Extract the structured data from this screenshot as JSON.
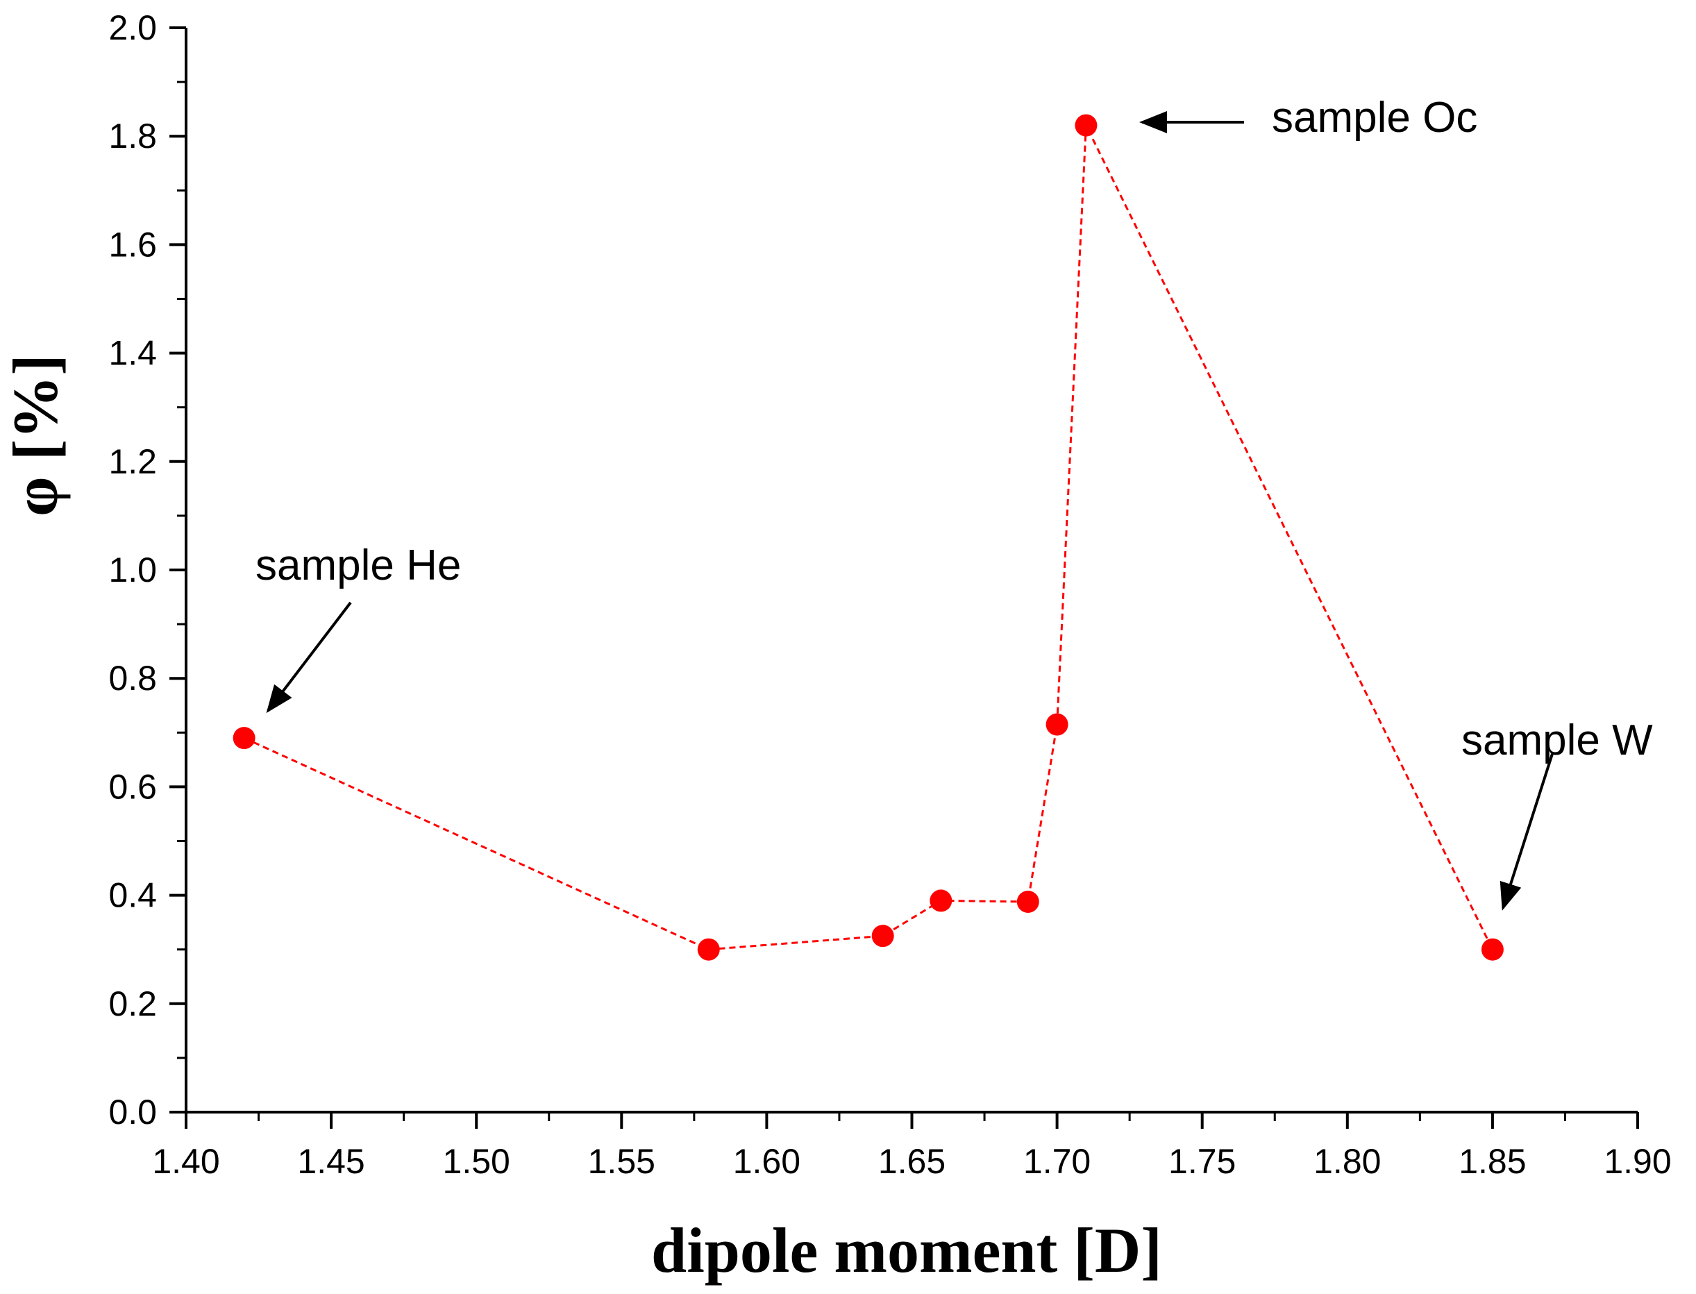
{
  "chart_data": {
    "type": "scatter",
    "line_style": "dashed",
    "xlabel": "dipole moment [D]",
    "ylabel": "φ [%]",
    "xlim": [
      1.4,
      1.9
    ],
    "ylim": [
      0.0,
      2.0
    ],
    "x_ticks": [
      "1.40",
      "1.45",
      "1.50",
      "1.55",
      "1.60",
      "1.65",
      "1.70",
      "1.75",
      "1.80",
      "1.85",
      "1.90"
    ],
    "y_ticks": [
      "0.0",
      "0.2",
      "0.4",
      "0.6",
      "0.8",
      "1.0",
      "1.2",
      "1.4",
      "1.6",
      "1.8",
      "2.0"
    ],
    "grid": false,
    "colors": {
      "series": "#ff0000",
      "axis": "#000000"
    },
    "series": [
      {
        "x": [
          1.42,
          1.58,
          1.64,
          1.66,
          1.69,
          1.7,
          1.71,
          1.85
        ],
        "y": [
          0.69,
          0.3,
          0.325,
          0.39,
          0.388,
          0.715,
          1.82,
          0.3
        ]
      }
    ],
    "annotations": [
      {
        "text": "sample He",
        "x": 1.42,
        "y": 0.69
      },
      {
        "text": "sample Oc",
        "x": 1.71,
        "y": 1.82
      },
      {
        "text": "sample W",
        "x": 1.85,
        "y": 0.3
      }
    ]
  }
}
